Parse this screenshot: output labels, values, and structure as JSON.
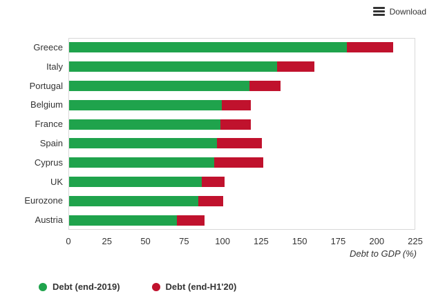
{
  "toolbar": {
    "download_label": "Download"
  },
  "chart_data": {
    "type": "bar",
    "orientation": "horizontal",
    "stacked": true,
    "title": "",
    "xlabel": "Debt to GDP (%)",
    "ylabel": "",
    "xlim": [
      0,
      225
    ],
    "xticks": [
      0,
      25,
      50,
      75,
      100,
      125,
      150,
      175,
      200,
      225
    ],
    "grid": false,
    "legend_position": "bottom-left",
    "categories": [
      "Greece",
      "Italy",
      "Portugal",
      "Belgium",
      "France",
      "Spain",
      "Cyprus",
      "UK",
      "Eurozone",
      "Austria"
    ],
    "series": [
      {
        "name": "Debt (end-2019)",
        "color": "#1fa34c",
        "values": [
          180,
          135,
          117,
          99,
          98,
          96,
          94,
          86,
          84,
          70
        ]
      },
      {
        "name": "Debt (end-H1'20)",
        "color": "#c0122d",
        "values": [
          30,
          24,
          20,
          19,
          20,
          29,
          32,
          15,
          16,
          18
        ],
        "stack_totals": [
          210,
          159,
          137,
          118,
          118,
          125,
          126,
          101,
          100,
          88
        ]
      }
    ]
  }
}
